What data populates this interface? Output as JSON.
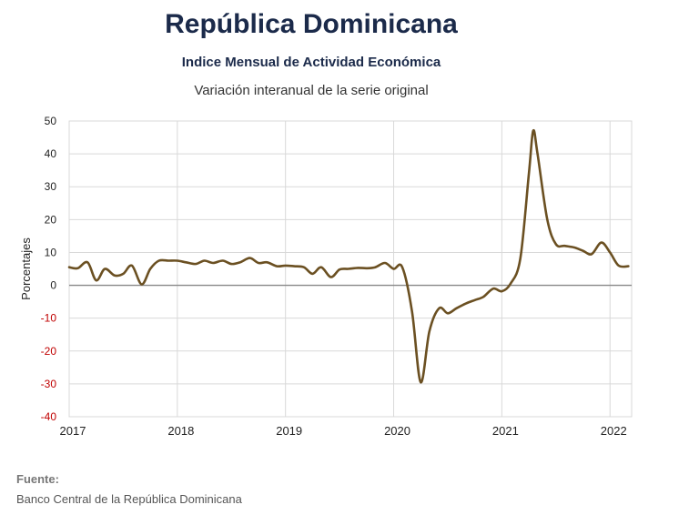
{
  "title": "República Dominicana",
  "subtitle": "Indice Mensual de  Actividad Económica",
  "subtitle2": "Variación interanual de la serie original",
  "source": {
    "label": "Fuente:",
    "text": "Banco Central de la República Dominicana"
  },
  "colors": {
    "line": "#6b5022",
    "grid": "#d9d9d9",
    "zero": "#888888",
    "neg_tick": "#c00000",
    "pos_tick": "#222222"
  },
  "chart_data": {
    "type": "line",
    "title": "",
    "xlabel": "",
    "ylabel": "Porcentajes",
    "ylim": [
      -40,
      50
    ],
    "xlim": [
      2017,
      2022.2
    ],
    "yticks": [
      50,
      40,
      30,
      20,
      10,
      0,
      -10,
      -20,
      -30,
      -40
    ],
    "ytick_labels": [
      "50",
      "40",
      "30",
      "20",
      "10",
      "0",
      "-10",
      "-20",
      "-30",
      "-40"
    ],
    "xticks": [
      2017,
      2018,
      2019,
      2020,
      2021,
      2022
    ],
    "xtick_labels": [
      "2017",
      "2018",
      "2019",
      "2020",
      "2021",
      "2022"
    ],
    "grid": true,
    "series": [
      {
        "values": [
          [
            2017.0,
            5.5
          ],
          [
            2017.08,
            5.2
          ],
          [
            2017.17,
            7.0
          ],
          [
            2017.25,
            1.5
          ],
          [
            2017.33,
            5.0
          ],
          [
            2017.42,
            3.0
          ],
          [
            2017.5,
            3.5
          ],
          [
            2017.58,
            6.0
          ],
          [
            2017.67,
            0.3
          ],
          [
            2017.75,
            5.0
          ],
          [
            2017.83,
            7.5
          ],
          [
            2017.92,
            7.5
          ],
          [
            2018.0,
            7.5
          ],
          [
            2018.08,
            7.0
          ],
          [
            2018.17,
            6.5
          ],
          [
            2018.25,
            7.5
          ],
          [
            2018.33,
            6.8
          ],
          [
            2018.42,
            7.5
          ],
          [
            2018.5,
            6.5
          ],
          [
            2018.58,
            7.0
          ],
          [
            2018.67,
            8.3
          ],
          [
            2018.75,
            6.8
          ],
          [
            2018.83,
            7.0
          ],
          [
            2018.92,
            5.8
          ],
          [
            2019.0,
            6.0
          ],
          [
            2019.08,
            5.8
          ],
          [
            2019.17,
            5.5
          ],
          [
            2019.25,
            3.5
          ],
          [
            2019.33,
            5.5
          ],
          [
            2019.42,
            2.5
          ],
          [
            2019.5,
            4.8
          ],
          [
            2019.58,
            5.0
          ],
          [
            2019.67,
            5.3
          ],
          [
            2019.75,
            5.2
          ],
          [
            2019.83,
            5.5
          ],
          [
            2019.92,
            6.8
          ],
          [
            2020.0,
            5.0
          ],
          [
            2020.08,
            5.5
          ],
          [
            2020.17,
            -8.0
          ],
          [
            2020.25,
            -29.5
          ],
          [
            2020.33,
            -14.0
          ],
          [
            2020.42,
            -7.0
          ],
          [
            2020.5,
            -8.5
          ],
          [
            2020.58,
            -7.0
          ],
          [
            2020.67,
            -5.5
          ],
          [
            2020.75,
            -4.5
          ],
          [
            2020.83,
            -3.5
          ],
          [
            2020.92,
            -1.0
          ],
          [
            2021.0,
            -1.8
          ],
          [
            2021.08,
            0.5
          ],
          [
            2021.17,
            8.0
          ],
          [
            2021.25,
            34.0
          ],
          [
            2021.29,
            47.0
          ],
          [
            2021.33,
            40.0
          ],
          [
            2021.42,
            20.0
          ],
          [
            2021.5,
            12.5
          ],
          [
            2021.58,
            12.0
          ],
          [
            2021.67,
            11.5
          ],
          [
            2021.75,
            10.5
          ],
          [
            2021.83,
            9.5
          ],
          [
            2021.92,
            13.0
          ],
          [
            2022.0,
            10.0
          ],
          [
            2022.08,
            6.0
          ],
          [
            2022.17,
            5.8
          ]
        ]
      }
    ]
  }
}
